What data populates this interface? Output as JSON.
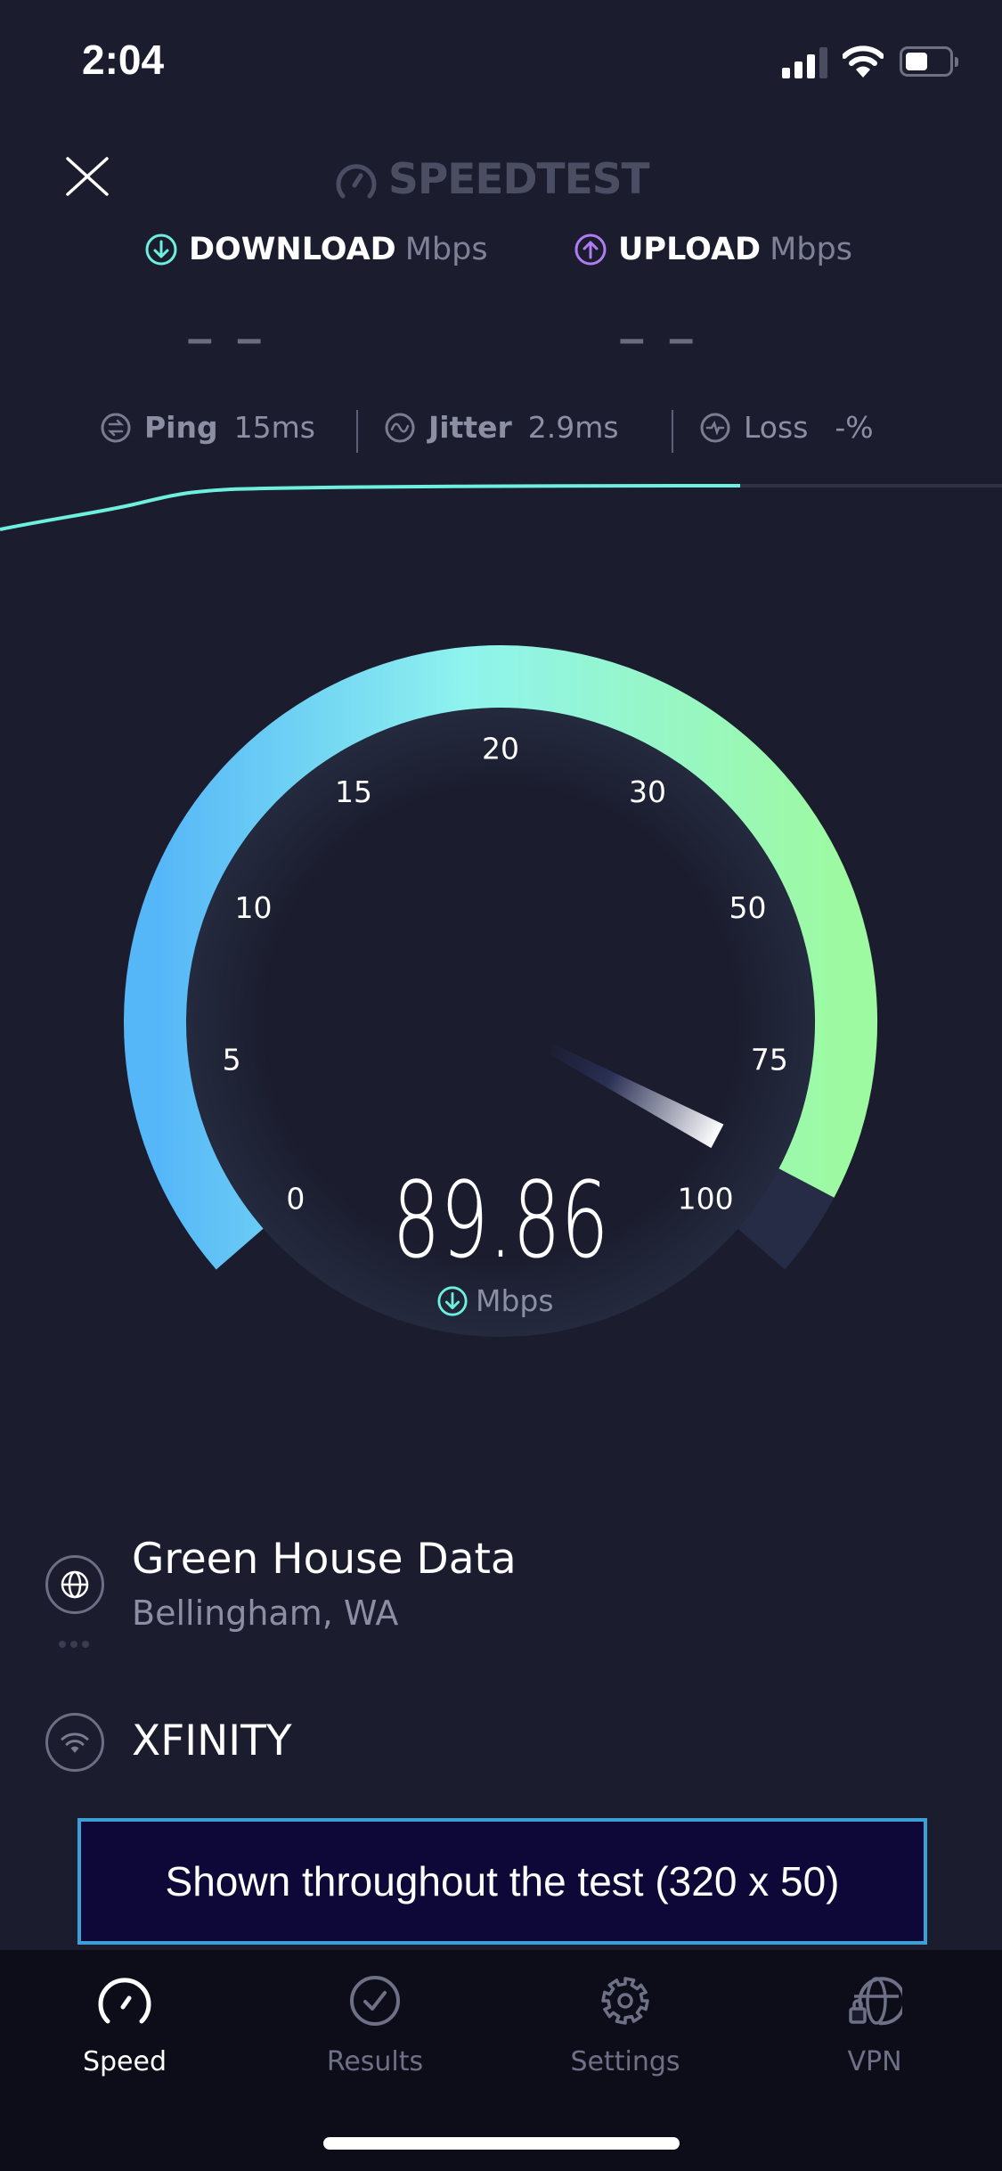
{
  "status_bar": {
    "time": "2:04",
    "signal_icon": "cellular-signal-icon",
    "wifi_icon": "wifi-icon",
    "battery_icon": "battery-icon",
    "battery_level": 0.45
  },
  "header": {
    "close_icon": "close-icon",
    "logo_text": "SPEEDTEST"
  },
  "download": {
    "label": "DOWNLOAD",
    "unit": "Mbps",
    "value": "– –",
    "color": "#6ef0e0"
  },
  "upload": {
    "label": "UPLOAD",
    "unit": "Mbps",
    "value": "– –",
    "color": "#b07cf2"
  },
  "metrics": {
    "ping": {
      "label": "Ping",
      "value": "15ms"
    },
    "jitter": {
      "label": "Jitter",
      "value": "2.9ms"
    },
    "loss": {
      "label": "Loss",
      "value": "-%"
    }
  },
  "gauge": {
    "ticks": [
      "0",
      "5",
      "10",
      "15",
      "20",
      "30",
      "50",
      "75",
      "100"
    ],
    "value": 89.86,
    "value_text": "89.86",
    "unit": "Mbps",
    "colors": {
      "start": "#55b6f8",
      "mid": "#8ff3ee",
      "end": "#9efaa0",
      "track": "#262b46"
    }
  },
  "server": {
    "name": "Green House Data",
    "location": "Bellingham, WA"
  },
  "provider": {
    "name": "XFINITY"
  },
  "ad": {
    "text": "Shown throughout the test (320 x 50)"
  },
  "tabs": [
    {
      "label": "Speed",
      "icon": "speedometer-icon",
      "active": true
    },
    {
      "label": "Results",
      "icon": "check-circle-icon",
      "active": false
    },
    {
      "label": "Settings",
      "icon": "gear-icon",
      "active": false
    },
    {
      "label": "VPN",
      "icon": "globe-lock-icon",
      "active": false
    }
  ]
}
